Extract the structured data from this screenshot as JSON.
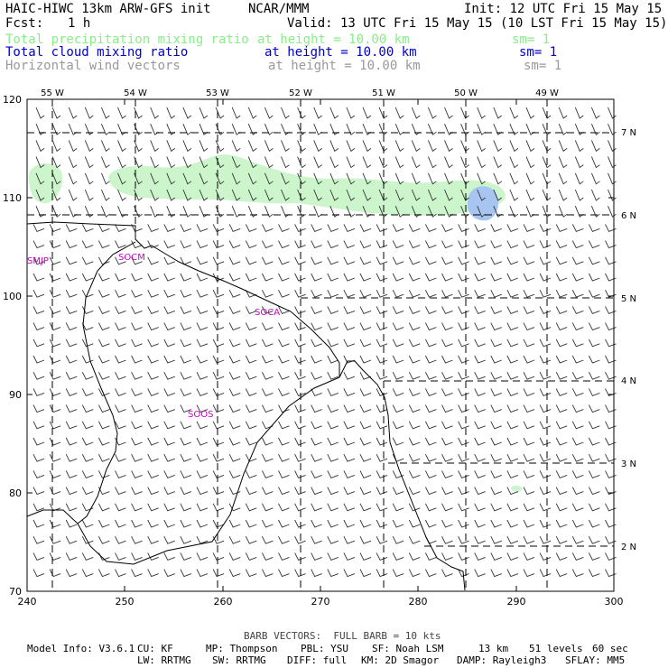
{
  "header": {
    "title": "HAIC-HIWC 13km ARW-GFS init",
    "org": "NCAR/MMM",
    "init": "Init: 12 UTC Fri 15 May 15",
    "fcst_label": "Fcst:",
    "fcst_value": "1 h",
    "valid": "Valid: 13 UTC Fri 15 May 15 (10 LST Fri 15 May 15)",
    "fields": [
      {
        "name": "Total precipitation mixing ratio",
        "height": "at height = 10.00 km",
        "sm": "sm= 1",
        "color": "#88ee88"
      },
      {
        "name": "Total cloud mixing ratio",
        "height": "at height = 10.00 km",
        "sm": "sm= 1",
        "color": "#0000cc"
      },
      {
        "name": "Horizontal wind vectors",
        "height": "at height = 10.00 km",
        "sm": "sm= 1",
        "color": "#999999"
      }
    ]
  },
  "map": {
    "x_ticks": [
      "240",
      "250",
      "260",
      "270",
      "280",
      "290",
      "300"
    ],
    "y_ticks": [
      "70",
      "80",
      "90",
      "100",
      "110",
      "120"
    ],
    "lon_labels": [
      "55 W",
      "54 W",
      "53 W",
      "52 W",
      "51 W",
      "50 W",
      "49 W"
    ],
    "lat_labels": [
      "7 N",
      "6 N",
      "5 N",
      "4 N",
      "3 N",
      "2 N"
    ],
    "stations": [
      "SMJP",
      "SOCM",
      "SOCA",
      "SOOS"
    ],
    "colors": {
      "precip": "#ccf5cc",
      "cloud": "#a8c4f0",
      "coast": "#000000",
      "barb": "#333333",
      "station": "#cc00cc"
    }
  },
  "footer": {
    "barb_note": "BARB VECTORS:  FULL BARB = 10 kts",
    "line1": [
      "Model Info: V3.6.1",
      "CU: KF",
      "MP: Thompson",
      "PBL: YSU",
      "SF: Noah LSM",
      "13 km",
      "51 levels",
      "60 sec"
    ],
    "line2": [
      "LW: RRTMG",
      "SW: RRTMG",
      "DIFF: full",
      "KM: 2D Smagor",
      "DAMP: Rayleigh3",
      "SFLAY: MM5"
    ]
  }
}
